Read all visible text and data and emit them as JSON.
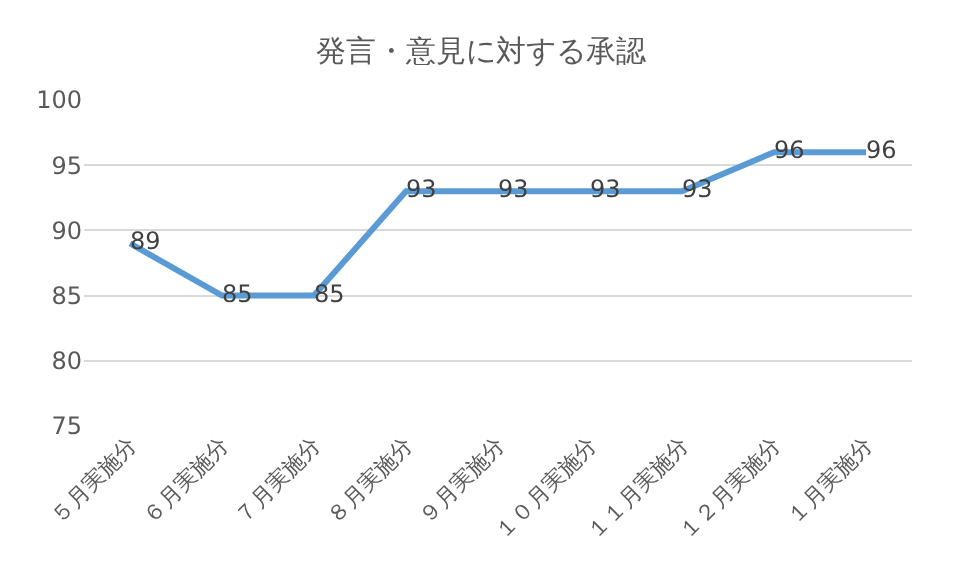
{
  "chart_data": {
    "type": "line",
    "title": "発言・意見に対する承認",
    "categories": [
      "５月実施分",
      "６月実施分",
      "７月実施分",
      "８月実施分",
      "９月実施分",
      "１０月実施分",
      "１１月実施分",
      "１２月実施分",
      "１月実施分"
    ],
    "values": [
      89,
      85,
      85,
      93,
      93,
      93,
      93,
      96,
      96
    ],
    "color": "#5b9bd5",
    "ylim": [
      75,
      100
    ],
    "yticks": [
      75,
      80,
      85,
      90,
      95,
      100
    ],
    "grid": "y",
    "data_labels": true,
    "marker": "none",
    "line_style": "solid",
    "legend": false
  }
}
